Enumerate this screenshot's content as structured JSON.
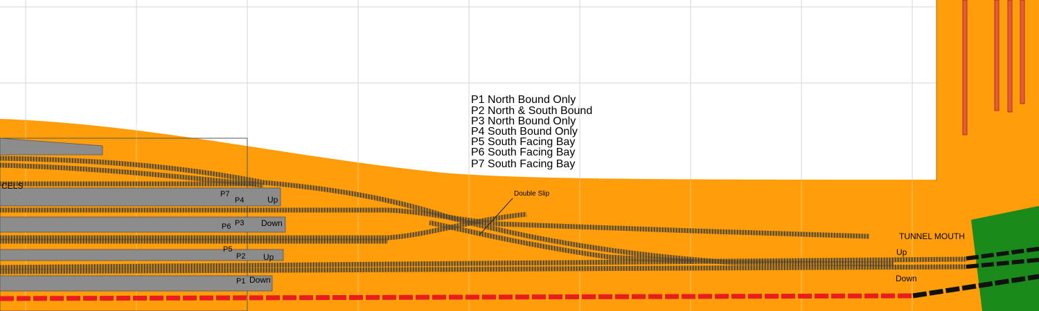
{
  "legend_lines": [
    "P1 North Bound Only",
    "P2 North & South Bound",
    "P3 North Bound Only",
    "P4 South Bound Only",
    "P5 South Facing Bay",
    "P6 South Facing Bay",
    "P7 South Facing Bay"
  ],
  "labels": {
    "parcels": "CELS",
    "double_slip": "Double Slip",
    "tunnel_mouth": "TUNNEL MOUTH",
    "up_right": "Up",
    "down_right": "Down"
  },
  "platforms": {
    "p7": "P7",
    "p4": "P4",
    "p4_dir": "Up",
    "p6": "P6",
    "p3": "P3",
    "p3_dir": "Down",
    "p5": "P5",
    "p2": "P2",
    "p2_dir": "Up",
    "p1": "P1",
    "p1_dir": "Down"
  },
  "colors": {
    "baseboard": "#ff9e0a",
    "platform": "#8c8c8c",
    "track": "#3a3a3a",
    "tunnel": "#1a8a1a",
    "red_track": "#e81e1e",
    "grid": "#d6d6d6"
  }
}
